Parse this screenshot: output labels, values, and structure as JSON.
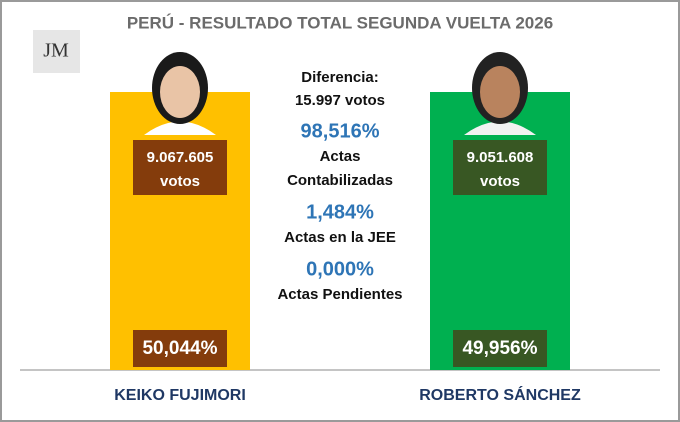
{
  "header": {
    "title": "PERÚ - RESULTADO TOTAL SEGUNDA VUELTA 2026",
    "logo": "JM"
  },
  "candidates": [
    {
      "name": "KEIKO FUJIMORI",
      "votes": "9.067.605",
      "votes_unit": "votos",
      "percent": "50,044%"
    },
    {
      "name": "ROBERTO SÁNCHEZ",
      "votes": "9.051.608",
      "votes_unit": "votos",
      "percent": "49,956%"
    }
  ],
  "summary": {
    "difference_label": "Diferencia:",
    "difference": "15.997 votos",
    "items": [
      {
        "value": "98,516%",
        "label_lines": [
          "Actas",
          "Contabilizadas"
        ]
      },
      {
        "value": "1,484%",
        "label_lines": [
          "Actas en la JEE"
        ]
      },
      {
        "value": "0,000%",
        "label_lines": [
          "Actas Pendientes"
        ]
      }
    ]
  }
}
